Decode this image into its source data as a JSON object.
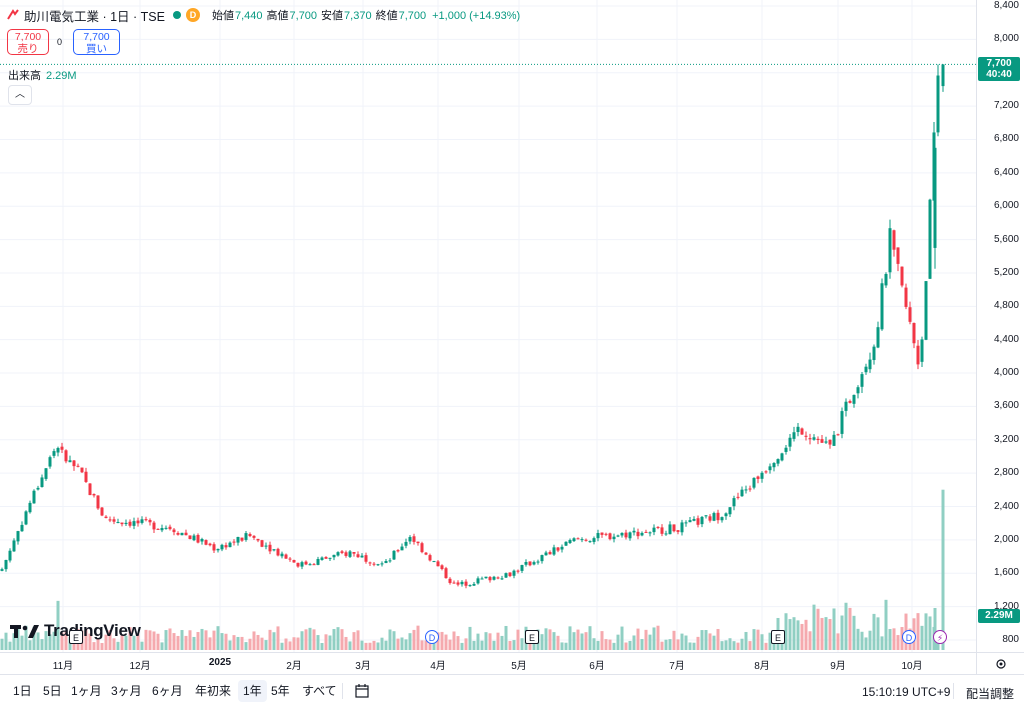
{
  "header": {
    "title": "助川電気工業 · 1日 · TSE",
    "market_badge": "D",
    "ohlc": [
      {
        "k": "始値",
        "v": "7,440"
      },
      {
        "k": "高値",
        "v": "7,700"
      },
      {
        "k": "安値",
        "v": "7,370"
      },
      {
        "k": "終値",
        "v": "7,700"
      },
      {
        "k": "",
        "v": "+1,000 (+14.93%)"
      }
    ]
  },
  "trade": {
    "sell_price": "7,700",
    "sell_label": "売り",
    "spread": "0",
    "buy_price": "7,700",
    "buy_label": "買い"
  },
  "volume_legend": {
    "label": "出来高",
    "value": "2.29M"
  },
  "price_tag": {
    "price": "7,700",
    "countdown": "40:40"
  },
  "volume_tag": "2.29M",
  "logo_text": "TradingView",
  "colors": {
    "up": "#089981",
    "down": "#f23645",
    "vol_up": "#90cfc3",
    "vol_down": "#f5a9ae"
  },
  "price_axis": [
    "8,400",
    "8,000",
    "7,600",
    "7,200",
    "6,800",
    "6,400",
    "6,000",
    "5,600",
    "5,200",
    "4,800",
    "4,400",
    "4,000",
    "3,600",
    "3,200",
    "2,800",
    "2,400",
    "2,000",
    "1,600",
    "1,200",
    "800"
  ],
  "time_axis": [
    {
      "label": "11月",
      "year": false
    },
    {
      "label": "12月",
      "year": false
    },
    {
      "label": "2025",
      "year": true
    },
    {
      "label": "2月",
      "year": false
    },
    {
      "label": "3月",
      "year": false
    },
    {
      "label": "4月",
      "year": false
    },
    {
      "label": "5月",
      "year": false
    },
    {
      "label": "6月",
      "year": false
    },
    {
      "label": "7月",
      "year": false
    },
    {
      "label": "8月",
      "year": false
    },
    {
      "label": "9月",
      "year": false
    },
    {
      "label": "10月",
      "year": false
    }
  ],
  "events": [
    {
      "type": "E",
      "label": "E"
    },
    {
      "type": "D",
      "label": "D"
    },
    {
      "type": "E",
      "label": "E"
    },
    {
      "type": "E",
      "label": "E"
    },
    {
      "type": "D",
      "label": "D"
    },
    {
      "type": "S",
      "label": "⚡"
    }
  ],
  "bottom_bar": {
    "ranges": [
      "1日",
      "5日",
      "1ヶ月",
      "3ヶ月",
      "6ヶ月",
      "年初来",
      "1年",
      "5年",
      "すべて"
    ],
    "active_range": "1年",
    "timezone": "15:10:19 UTC+9",
    "adjust": "配当調整"
  },
  "chart_data": {
    "type": "candlestick",
    "title": "助川電気工業 · 1日 · TSE",
    "ylim": [
      800,
      8400
    ],
    "y_ticks": [
      8400,
      8000,
      7600,
      7200,
      6800,
      6400,
      6000,
      5600,
      5200,
      4800,
      4400,
      4000,
      3600,
      3200,
      2800,
      2400,
      2000,
      1600,
      1200,
      800
    ],
    "grid": true,
    "months": [
      "11月",
      "12月",
      "2025",
      "2月",
      "3月",
      "4月",
      "5月",
      "6月",
      "7月",
      "8月",
      "9月",
      "10月"
    ],
    "anchors": [
      {
        "period": "2024-10 early",
        "close": 1650
      },
      {
        "period": "2024-10 mid",
        "close": 2450
      },
      {
        "period": "2024-10 late",
        "close": 3100
      },
      {
        "period": "2024-11 early",
        "close": 2800
      },
      {
        "period": "2024-11 late",
        "close": 2250
      },
      {
        "period": "2024-12 mid",
        "close": 2150
      },
      {
        "period": "2025-01 early",
        "close": 1900
      },
      {
        "period": "2025-01 late",
        "close": 2050
      },
      {
        "period": "2025-02 mid",
        "close": 1700
      },
      {
        "period": "2025-03 early",
        "close": 1850
      },
      {
        "period": "2025-03 late",
        "close": 1700
      },
      {
        "period": "2025-04 early",
        "close": 2050
      },
      {
        "period": "2025-04 mid",
        "close": 1450
      },
      {
        "period": "2025-05 mid",
        "close": 1600
      },
      {
        "period": "2025-06 early",
        "close": 2000
      },
      {
        "period": "2025-07 early",
        "close": 2150
      },
      {
        "period": "2025-08 early",
        "close": 2300
      },
      {
        "period": "2025-08 mid",
        "close": 2650
      },
      {
        "period": "2025-08 late",
        "close": 3350
      },
      {
        "period": "2025-09 early",
        "close": 3100
      },
      {
        "period": "2025-09 mid",
        "close": 3700
      },
      {
        "period": "2025-09 late",
        "close": 4400
      },
      {
        "period": "2025-10 early",
        "close": 5600
      },
      {
        "period": "2025-10 mid",
        "close": 4050
      },
      {
        "period": "2025-10 latest",
        "open": 7440,
        "high": 7700,
        "low": 7370,
        "close": 7700
      }
    ],
    "latest_volume": "2.29M"
  }
}
